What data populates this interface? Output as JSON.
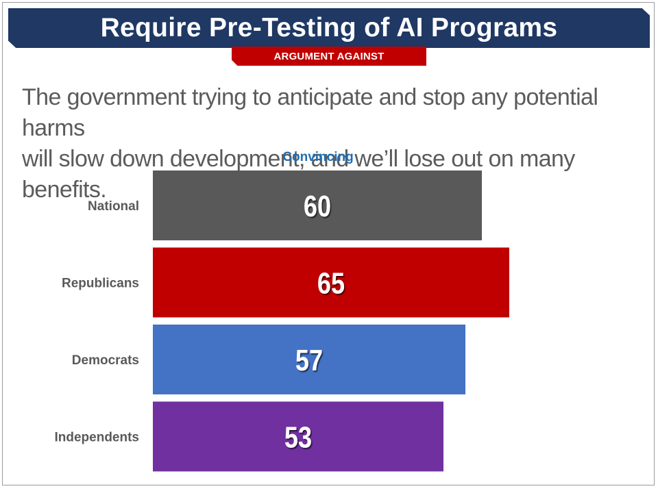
{
  "slide": {
    "title": "Require Pre-Testing of AI Programs",
    "tag": "ARGUMENT AGAINST",
    "statement_lines": [
      "The government trying to anticipate and stop any potential harms",
      "will slow down development, and we’ll lose out on many benefits."
    ]
  },
  "colors": {
    "banner": "#1f3864",
    "tag": "#c00000",
    "header_text": "#1f6eb4"
  },
  "chart_data": {
    "type": "bar",
    "orientation": "horizontal",
    "column_header": "Convincing",
    "categories": [
      "National",
      "Republicans",
      "Democrats",
      "Independents"
    ],
    "values": [
      60,
      65,
      57,
      53
    ],
    "colors": [
      "#595959",
      "#c00000",
      "#4472c4",
      "#7030a0"
    ],
    "xlim": [
      0,
      100
    ],
    "grid": false,
    "legend": "none"
  }
}
